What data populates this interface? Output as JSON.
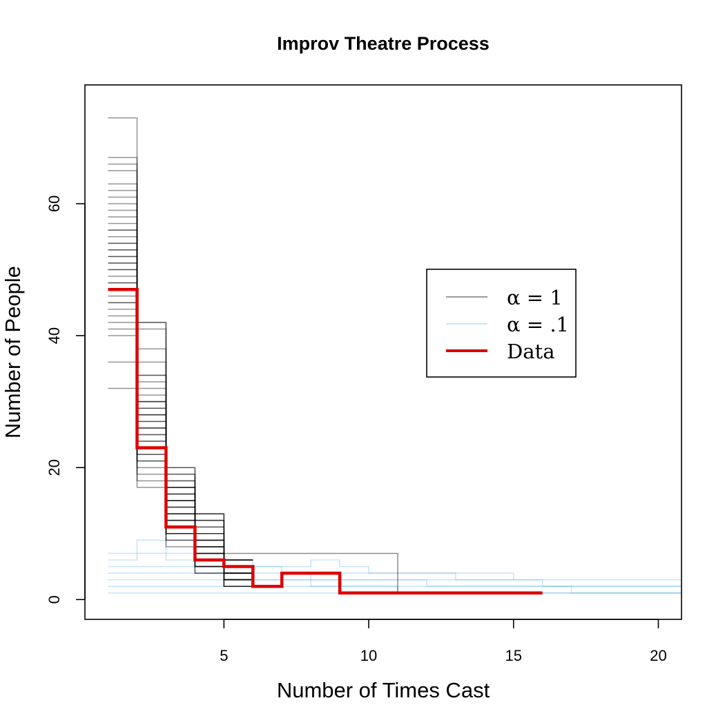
{
  "chart_data": {
    "type": "line",
    "title": "Improv Theatre Process",
    "xlabel": "Number of Times Cast",
    "ylabel": "Number of People",
    "xlim": [
      0.2,
      20.8
    ],
    "ylim": [
      -3,
      78
    ],
    "xticks": [
      5,
      10,
      15,
      20
    ],
    "yticks": [
      0,
      20,
      40,
      60
    ],
    "legend": {
      "placement": "right-middle",
      "entries": [
        {
          "label": "α = 1",
          "color": "#7a7a7a"
        },
        {
          "label": "α = .1",
          "color": "#b7dcf5"
        },
        {
          "label": "Data",
          "color": "#dd0000"
        }
      ]
    },
    "simulation_alpha1": {
      "color": "#000000",
      "count_at_1": [
        73,
        67,
        66,
        65,
        63,
        62,
        61,
        60,
        59,
        58,
        57,
        56,
        56,
        55,
        54,
        54,
        53,
        53,
        52,
        52,
        51,
        51,
        50,
        50,
        49,
        48,
        48,
        47,
        46,
        45,
        45,
        44,
        43,
        42,
        41,
        40,
        36,
        32
      ],
      "count_at_2": [
        42,
        41,
        38,
        36,
        34,
        33,
        32,
        31,
        30,
        30,
        29,
        29,
        28,
        28,
        27,
        27,
        26,
        26,
        25,
        25,
        24,
        24,
        23,
        23,
        22,
        22,
        21,
        20,
        19,
        18,
        17
      ],
      "count_at_3": [
        20,
        19,
        18,
        17,
        17,
        16,
        16,
        15,
        15,
        14,
        14,
        13,
        13,
        12,
        12,
        11,
        11,
        10,
        10,
        9,
        8
      ],
      "count_at_4": [
        13,
        12,
        11,
        10,
        9,
        9,
        8,
        8,
        7,
        7,
        6,
        6,
        5,
        5,
        4
      ],
      "count_at_5": [
        6,
        5,
        5,
        4,
        4,
        3,
        3,
        2
      ],
      "tail_to_11": 7
    },
    "simulation_alpha01": {
      "color": "#5aaee6",
      "series": [
        {
          "x": [
            1,
            2,
            3,
            4,
            5,
            6,
            7,
            8,
            9,
            10,
            11,
            12,
            13,
            14,
            15
          ],
          "y": [
            7,
            9,
            7,
            6,
            6,
            5,
            5,
            6,
            5,
            4,
            4,
            4,
            4,
            4,
            3
          ]
        },
        {
          "x": [
            1,
            2,
            3,
            4,
            5,
            6,
            7,
            8,
            9,
            10,
            11,
            12,
            13,
            14,
            15,
            16,
            17,
            18,
            19,
            20,
            21
          ],
          "y": [
            6,
            7,
            6,
            6,
            5,
            5,
            4,
            4,
            4,
            4,
            4,
            4,
            3,
            3,
            3,
            3,
            3,
            3,
            3,
            3,
            3
          ]
        },
        {
          "x": [
            1,
            2,
            3,
            4,
            5,
            6,
            7,
            8,
            9,
            10,
            11,
            12,
            13,
            14,
            15,
            16,
            17,
            18,
            19,
            20,
            21
          ],
          "y": [
            5,
            5,
            5,
            5,
            4,
            4,
            4,
            3,
            3,
            3,
            3,
            3,
            3,
            3,
            3,
            2,
            2,
            2,
            2,
            2,
            2
          ]
        },
        {
          "x": [
            1,
            2,
            3,
            4,
            5,
            6,
            7,
            8,
            9,
            10,
            11,
            12,
            13,
            14,
            15,
            16,
            17,
            18,
            19,
            20,
            21
          ],
          "y": [
            4,
            4,
            4,
            4,
            4,
            3,
            3,
            3,
            3,
            3,
            3,
            2,
            2,
            2,
            2,
            2,
            2,
            2,
            2,
            2,
            2
          ]
        },
        {
          "x": [
            1,
            2,
            3,
            4,
            5,
            6,
            7,
            8,
            9,
            10,
            11,
            12,
            13,
            14,
            15,
            16,
            17,
            18,
            19,
            20,
            21
          ],
          "y": [
            3,
            3,
            3,
            3,
            3,
            3,
            3,
            2,
            2,
            2,
            2,
            2,
            2,
            2,
            2,
            2,
            1,
            1,
            1,
            1,
            1
          ]
        },
        {
          "x": [
            1,
            2,
            3,
            4,
            5,
            6,
            7,
            8,
            9,
            10,
            11,
            12,
            13,
            14,
            15,
            16,
            17,
            18,
            19,
            20,
            21
          ],
          "y": [
            2,
            2,
            2,
            2,
            2,
            2,
            2,
            2,
            2,
            2,
            1,
            1,
            1,
            1,
            1,
            1,
            1,
            1,
            1,
            1,
            1
          ]
        },
        {
          "x": [
            1,
            2,
            3,
            4,
            5,
            6,
            7,
            8,
            9,
            10,
            11,
            12,
            13,
            14,
            15,
            16,
            17,
            18,
            19,
            20,
            21
          ],
          "y": [
            1,
            1,
            1,
            1,
            1,
            1,
            1,
            1,
            1,
            1,
            1,
            1,
            1,
            1,
            1,
            1,
            1,
            1,
            1,
            1,
            1
          ]
        }
      ]
    },
    "data_series": {
      "name": "Data",
      "color": "#dd0000",
      "x": [
        1,
        2,
        3,
        4,
        5,
        6,
        7,
        8,
        9,
        10,
        11,
        12,
        13,
        14,
        15,
        16
      ],
      "y": [
        47,
        23,
        11,
        6,
        5,
        2,
        4,
        4,
        1,
        1,
        1,
        1,
        1,
        1,
        1,
        1
      ]
    }
  }
}
